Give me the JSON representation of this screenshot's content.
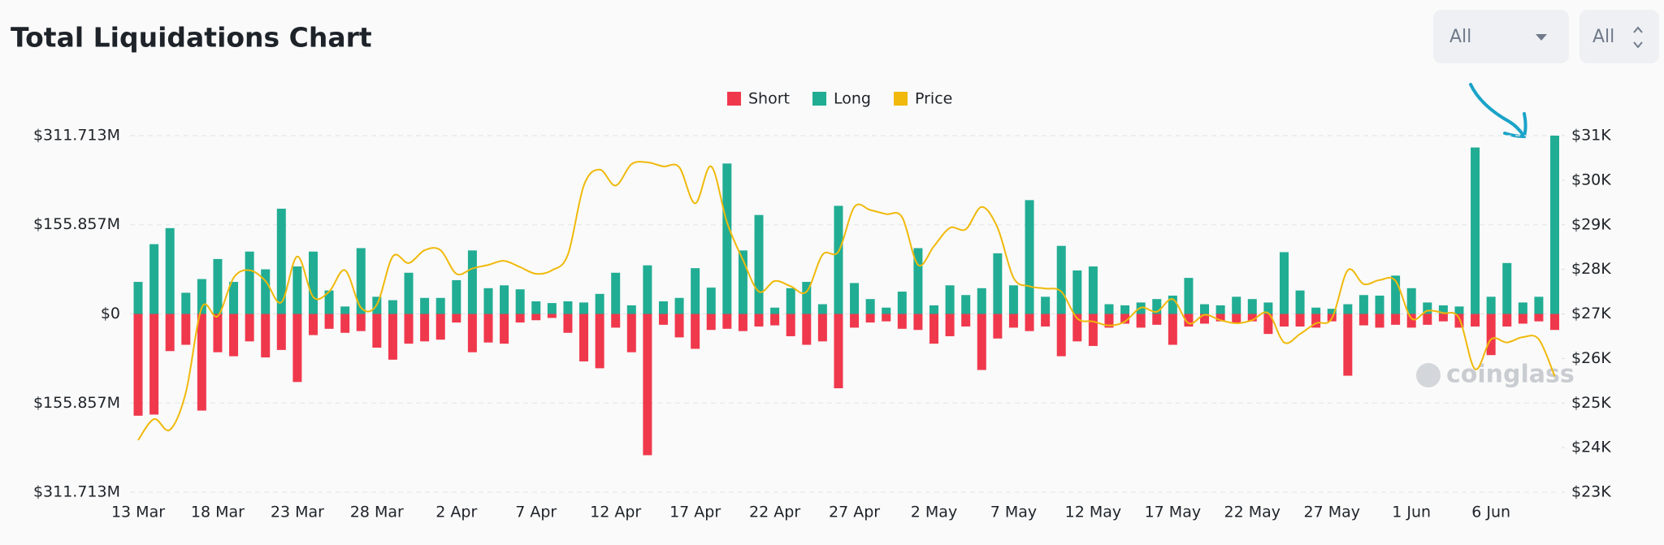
{
  "chart_data": {
    "type": "bar",
    "title": "Total Liquidations Chart",
    "controls": [
      "All",
      "All"
    ],
    "watermark": "coinglass",
    "categories": [
      "13 Mar",
      null,
      null,
      null,
      null,
      "18 Mar",
      null,
      null,
      null,
      null,
      "23 Mar",
      null,
      null,
      null,
      null,
      "28 Mar",
      null,
      null,
      null,
      null,
      "2 Apr",
      null,
      null,
      null,
      null,
      "7 Apr",
      null,
      null,
      null,
      null,
      "12 Apr",
      null,
      null,
      null,
      null,
      "17 Apr",
      null,
      null,
      null,
      null,
      "22 Apr",
      null,
      null,
      null,
      null,
      "27 Apr",
      null,
      null,
      null,
      null,
      "2 May",
      null,
      null,
      null,
      null,
      "7 May",
      null,
      null,
      null,
      null,
      "12 May",
      null,
      null,
      null,
      null,
      "17 May",
      null,
      null,
      null,
      null,
      "22 May",
      null,
      null,
      null,
      null,
      "27 May",
      null,
      null,
      null,
      null,
      "1 Jun",
      null,
      null,
      null,
      null,
      "6 Jun",
      null,
      null,
      null,
      null
    ],
    "series": [
      {
        "name": "Short",
        "color": "#f0384c",
        "values": [
          -178,
          -176,
          -65,
          -54,
          -169,
          -67,
          -74,
          -48,
          -76,
          -63,
          -119,
          -37,
          -26,
          -33,
          -30,
          -59,
          -80,
          -52,
          -48,
          -45,
          -15,
          -67,
          -50,
          -52,
          -15,
          -11,
          -7,
          -33,
          -83,
          -95,
          -24,
          -67,
          -247,
          -19,
          -41,
          -61,
          -28,
          -26,
          -30,
          -22,
          -20,
          -39,
          -54,
          -48,
          -130,
          -24,
          -15,
          -13,
          -26,
          -28,
          -52,
          -39,
          -22,
          -98,
          -43,
          -24,
          -30,
          -22,
          -74,
          -48,
          -56,
          -24,
          -17,
          -24,
          -19,
          -54,
          -22,
          -17,
          -13,
          -17,
          -13,
          -35,
          -22,
          -22,
          -24,
          -13,
          -108,
          -20,
          -24,
          -19,
          -24,
          -19,
          -13,
          -24,
          -22,
          -72,
          -22,
          -17,
          -13,
          -28
        ]
      },
      {
        "name": "Long",
        "color": "#21ad93",
        "values": [
          56,
          122,
          150,
          37,
          61,
          96,
          56,
          109,
          78,
          184,
          83,
          109,
          41,
          13,
          115,
          30,
          24,
          72,
          28,
          28,
          59,
          111,
          45,
          50,
          43,
          22,
          19,
          22,
          20,
          35,
          72,
          15,
          85,
          22,
          28,
          80,
          46,
          263,
          111,
          173,
          11,
          45,
          56,
          17,
          189,
          54,
          26,
          11,
          39,
          115,
          15,
          50,
          33,
          45,
          106,
          50,
          199,
          30,
          119,
          76,
          83,
          17,
          15,
          20,
          26,
          32,
          63,
          17,
          15,
          30,
          26,
          20,
          108,
          41,
          11,
          9,
          17,
          33,
          32,
          67,
          45,
          20,
          15,
          13,
          291,
          30,
          89,
          20,
          30,
          311.713
        ]
      },
      {
        "name": "Price",
        "color": "#f0b90b",
        "axis": "y2",
        "values": [
          24170,
          24640,
          24400,
          25240,
          27140,
          26950,
          27810,
          27980,
          27740,
          27260,
          28290,
          27380,
          27500,
          27980,
          27140,
          27210,
          28290,
          28140,
          28430,
          28430,
          27900,
          28020,
          28100,
          28190,
          28050,
          27900,
          27980,
          28330,
          29880,
          30240,
          29880,
          30360,
          30400,
          30310,
          30290,
          29480,
          30310,
          29050,
          28210,
          27500,
          27740,
          27620,
          27500,
          28330,
          28400,
          29400,
          29330,
          29240,
          29170,
          28100,
          28520,
          28930,
          28900,
          29400,
          28930,
          27810,
          27620,
          27570,
          27500,
          26900,
          26830,
          26740,
          26830,
          27140,
          27050,
          27330,
          26790,
          26980,
          26860,
          26790,
          26860,
          27020,
          26360,
          26550,
          26790,
          26900,
          27980,
          27670,
          27760,
          27740,
          26900,
          27070,
          27020,
          26900,
          25760,
          26430,
          26360,
          26480,
          26430,
          25600
        ]
      }
    ],
    "ylim": [
      -311.713,
      311.713
    ],
    "yticks": [
      {
        "value": 311.713,
        "label": "$311.713M"
      },
      {
        "value": 155.857,
        "label": "$155.857M"
      },
      {
        "value": 0,
        "label": "$0"
      },
      {
        "value": -155.857,
        "label": "$155.857M"
      },
      {
        "value": -311.713,
        "label": "$311.713M"
      }
    ],
    "y2lim": [
      23000,
      31000
    ],
    "y2ticks": [
      {
        "value": 31000,
        "label": "$31K"
      },
      {
        "value": 30000,
        "label": "$30K"
      },
      {
        "value": 29000,
        "label": "$29K"
      },
      {
        "value": 28000,
        "label": "$28K"
      },
      {
        "value": 27000,
        "label": "$27K"
      },
      {
        "value": 26000,
        "label": "$26K"
      },
      {
        "value": 25000,
        "label": "$25K"
      },
      {
        "value": 24000,
        "label": "$24K"
      },
      {
        "value": 23000,
        "label": "$23K"
      }
    ],
    "grid": true,
    "legend": "top"
  }
}
